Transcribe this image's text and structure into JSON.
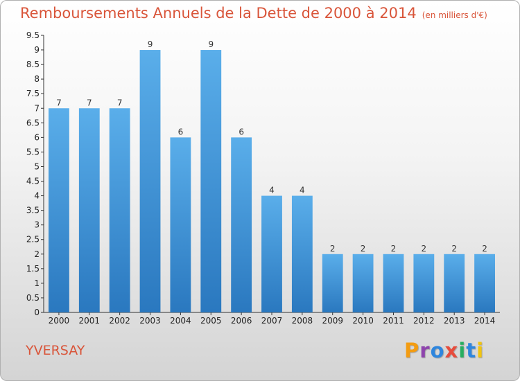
{
  "title": "Remboursements Annuels de la Dette de 2000 à 2014",
  "title_unit": "(en milliers d'€)",
  "commune": "YVERSAY",
  "brand": {
    "text": "Proxiti",
    "letter_colors": [
      "#f39c12",
      "#8e44ad",
      "#2e86de",
      "#e74c3c",
      "#27ae60",
      "#2e86de",
      "#f1c40f"
    ]
  },
  "colors": {
    "bar_light": "#5aaeea",
    "bar_dark": "#2a78bf",
    "text_accent": "#d9553a",
    "grid": "#333333"
  },
  "chart_data": {
    "type": "bar",
    "categories": [
      "2000",
      "2001",
      "2002",
      "2003",
      "2004",
      "2005",
      "2006",
      "2007",
      "2008",
      "2009",
      "2010",
      "2011",
      "2012",
      "2013",
      "2014"
    ],
    "values": [
      7,
      7,
      7,
      9,
      6,
      9,
      6,
      4,
      4,
      2,
      2,
      2,
      2,
      2,
      2
    ],
    "value_labels": [
      "7",
      "7",
      "7",
      "9",
      "6",
      "9",
      "6",
      "4",
      "4",
      "2",
      "2",
      "2",
      "2",
      "2",
      "2"
    ],
    "ylim": [
      0,
      9.5
    ],
    "yticks": [
      0,
      0.5,
      1,
      1.5,
      2,
      2.5,
      3,
      3.5,
      4,
      4.5,
      5,
      5.5,
      6,
      6.5,
      7,
      7.5,
      8,
      8.5,
      9,
      9.5
    ],
    "ytick_labels": [
      "0",
      "0.5",
      "1",
      "1.5",
      "2",
      "2.5",
      "3",
      "3.5",
      "4",
      "4.5",
      "5",
      "5.5",
      "6",
      "6.5",
      "7",
      "7.5",
      "8",
      "8.5",
      "9",
      "9.5"
    ],
    "grid": false,
    "legend": "none"
  }
}
